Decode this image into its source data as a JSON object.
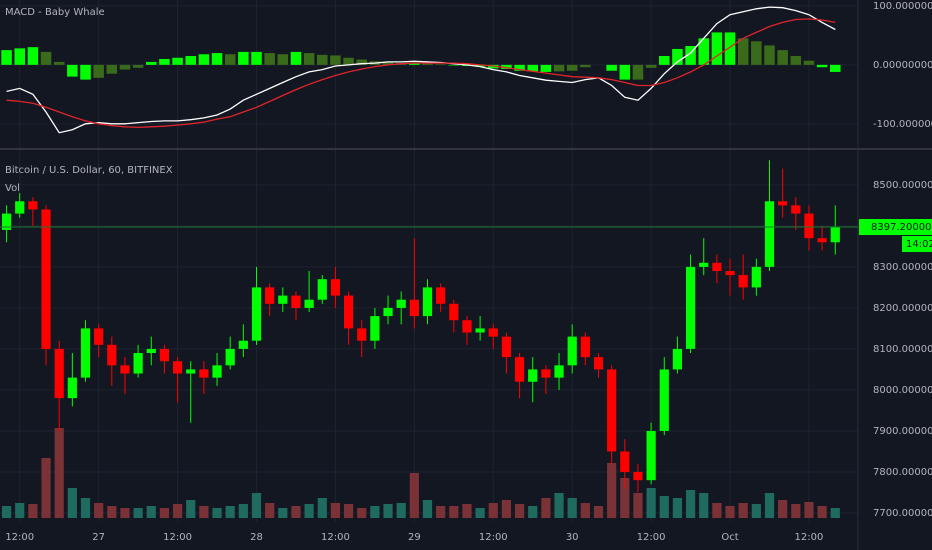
{
  "chart_data": [
    {
      "type": "macd",
      "title": "MACD - Baby Whale",
      "x": [
        1,
        3,
        5,
        7,
        9,
        11,
        13,
        15,
        17,
        19,
        21,
        23,
        25,
        27,
        29,
        31,
        33,
        35,
        37,
        39,
        41,
        43,
        45,
        47,
        49,
        51,
        53,
        55,
        57,
        59,
        61,
        63,
        65,
        67,
        69,
        71,
        73,
        75,
        77,
        79,
        81,
        83,
        85,
        87,
        89,
        91,
        93,
        95,
        97,
        99,
        101,
        103,
        105,
        107,
        109,
        111,
        113,
        115,
        117,
        119,
        121,
        123,
        125,
        127
      ],
      "xlim": [
        0,
        130
      ],
      "ylim": [
        -141,
        110
      ],
      "yticks": [
        {
          "value": 100,
          "label": "100.00000000"
        },
        {
          "value": 0,
          "label": "0.00000000"
        },
        {
          "value": -100,
          "label": "-100.00000000"
        }
      ],
      "histogram": {
        "colors": [
          "#00ff00",
          "#3a6b1a"
        ],
        "values": [
          25,
          28,
          30,
          22,
          5,
          -20,
          -25,
          -22,
          -15,
          -8,
          -5,
          5,
          10,
          12,
          15,
          18,
          20,
          18,
          22,
          22,
          20,
          18,
          22,
          20,
          17,
          16,
          12,
          9,
          6,
          5,
          3,
          3,
          2,
          1,
          -1,
          -2,
          -3,
          -6,
          -7,
          -10,
          -11,
          -12,
          -11,
          -10,
          -4,
          0,
          -10,
          -25,
          -25,
          -5,
          15,
          27,
          32,
          45,
          55,
          55,
          45,
          40,
          33,
          25,
          15,
          7,
          -4,
          -12
        ]
      },
      "lines": [
        {
          "color": "#ffffff",
          "values": [
            -45,
            -40,
            -50,
            -80,
            -115,
            -110,
            -100,
            -98,
            -100,
            -100,
            -98,
            -96,
            -95,
            -95,
            -93,
            -90,
            -85,
            -75,
            -60,
            -50,
            -40,
            -30,
            -20,
            -12,
            -8,
            -2,
            0,
            2,
            3,
            5,
            5,
            6,
            5,
            4,
            2,
            0,
            -3,
            -8,
            -12,
            -18,
            -22,
            -26,
            -28,
            -30,
            -25,
            -22,
            -35,
            -55,
            -60,
            -40,
            -15,
            5,
            20,
            45,
            70,
            85,
            90,
            95,
            98,
            97,
            92,
            85,
            72,
            60
          ]
        },
        {
          "color": "#e0242c",
          "values": [
            -60,
            -62,
            -65,
            -72,
            -80,
            -88,
            -95,
            -100,
            -103,
            -105,
            -106,
            -105,
            -104,
            -102,
            -100,
            -97,
            -92,
            -88,
            -80,
            -72,
            -62,
            -52,
            -42,
            -33,
            -25,
            -18,
            -12,
            -7,
            -3,
            0,
            2,
            3,
            3,
            3,
            3,
            2,
            0,
            -2,
            -5,
            -8,
            -11,
            -14,
            -17,
            -20,
            -21,
            -22,
            -25,
            -30,
            -35,
            -35,
            -30,
            -22,
            -12,
            0,
            15,
            30,
            45,
            55,
            65,
            72,
            77,
            78,
            76,
            72
          ]
        }
      ]
    },
    {
      "type": "candlestick",
      "title": "Bitcoin / U.S. Dollar, 60, BITFINEX",
      "volume_label": "Vol",
      "x": [
        1,
        3,
        5,
        7,
        9,
        11,
        13,
        15,
        17,
        19,
        21,
        23,
        25,
        27,
        29,
        31,
        33,
        35,
        37,
        39,
        41,
        43,
        45,
        47,
        49,
        51,
        53,
        55,
        57,
        59,
        61,
        63,
        65,
        67,
        69,
        71,
        73,
        75,
        77,
        79,
        81,
        83,
        85,
        87,
        89,
        91,
        93,
        95,
        97,
        99,
        101,
        103,
        105,
        107,
        109,
        111,
        113,
        115,
        117,
        119,
        121,
        123,
        125,
        127
      ],
      "open": [
        8390,
        8430,
        8460,
        8440,
        8100,
        7980,
        8030,
        8150,
        8110,
        8060,
        8040,
        8090,
        8100,
        8070,
        8040,
        8050,
        8030,
        8060,
        8100,
        8120,
        8250,
        8210,
        8230,
        8200,
        8220,
        8270,
        8230,
        8150,
        8120,
        8180,
        8200,
        8220,
        8180,
        8250,
        8210,
        8170,
        8140,
        8150,
        8130,
        8080,
        8020,
        8050,
        8030,
        8060,
        8130,
        8080,
        8050,
        7850,
        7800,
        7780,
        7900,
        8050,
        8100,
        8300,
        8310,
        8290,
        8280,
        8250,
        8300,
        8460,
        8450,
        8430,
        8370,
        8360
      ],
      "high": [
        8450,
        8480,
        8470,
        8450,
        8120,
        8090,
        8170,
        8160,
        8130,
        8080,
        8110,
        8130,
        8110,
        8080,
        8070,
        8070,
        8090,
        8130,
        8160,
        8300,
        8260,
        8250,
        8240,
        8290,
        8280,
        8300,
        8240,
        8170,
        8200,
        8230,
        8240,
        8370,
        8270,
        8260,
        8220,
        8180,
        8180,
        8160,
        8140,
        8090,
        8080,
        8060,
        8090,
        8160,
        8140,
        8090,
        8060,
        7880,
        7820,
        7920,
        8080,
        8130,
        8330,
        8370,
        8330,
        8320,
        8330,
        8320,
        8560,
        8540,
        8470,
        8450,
        8400,
        8450
      ],
      "low": [
        8360,
        8420,
        8400,
        8060,
        7900,
        7960,
        8020,
        8080,
        8010,
        7990,
        8030,
        8060,
        8040,
        7970,
        7920,
        7990,
        8010,
        8050,
        8080,
        8110,
        8180,
        8190,
        8170,
        8190,
        8210,
        8200,
        8110,
        8080,
        8100,
        8160,
        8160,
        8150,
        8160,
        8190,
        8140,
        8110,
        8120,
        8100,
        8040,
        7980,
        7970,
        7990,
        8000,
        8040,
        8060,
        8030,
        7820,
        7760,
        7750,
        7770,
        7890,
        8040,
        8090,
        8280,
        8260,
        8230,
        8220,
        8230,
        8290,
        8420,
        8390,
        8340,
        8340,
        8330
      ],
      "close": [
        8430,
        8460,
        8440,
        8100,
        7980,
        8030,
        8150,
        8110,
        8060,
        8040,
        8090,
        8100,
        8070,
        8040,
        8050,
        8030,
        8060,
        8100,
        8120,
        8250,
        8210,
        8230,
        8200,
        8220,
        8270,
        8230,
        8150,
        8120,
        8180,
        8200,
        8220,
        8180,
        8250,
        8210,
        8170,
        8140,
        8150,
        8130,
        8080,
        8020,
        8050,
        8030,
        8060,
        8130,
        8080,
        8050,
        7850,
        7800,
        7780,
        7900,
        8050,
        8100,
        8300,
        8310,
        8290,
        8280,
        8250,
        8300,
        8460,
        8450,
        8430,
        8370,
        8360,
        8397.2
      ],
      "volume": [
        12,
        15,
        14,
        60,
        90,
        30,
        20,
        15,
        12,
        10,
        10,
        12,
        10,
        14,
        18,
        12,
        10,
        12,
        14,
        25,
        15,
        10,
        12,
        14,
        20,
        15,
        14,
        10,
        12,
        14,
        15,
        45,
        18,
        12,
        12,
        14,
        10,
        15,
        18,
        14,
        12,
        20,
        25,
        20,
        15,
        12,
        55,
        40,
        25,
        30,
        22,
        20,
        28,
        25,
        15,
        12,
        15,
        14,
        25,
        18,
        14,
        16,
        12,
        10
      ],
      "vlim": [
        0,
        100
      ],
      "up_color": "#00ff00",
      "down_color": "#ff0000",
      "volume_colors": [
        "#1f6b60",
        "#7a3236"
      ],
      "xlim": [
        0,
        130
      ],
      "ylim": [
        7678,
        8585
      ],
      "yticks": [
        {
          "value": 8500,
          "label": "8500.00000000"
        },
        {
          "value": 8400,
          "label": "8400.00000000"
        },
        {
          "value": 8300,
          "label": "8300.00000000"
        },
        {
          "value": 8200,
          "label": "8200.00000000"
        },
        {
          "value": 8100,
          "label": "8100.00000000"
        },
        {
          "value": 8000,
          "label": "8000.00000000"
        },
        {
          "value": 7900,
          "label": "7900.00000000"
        },
        {
          "value": 7800,
          "label": "7800.00000000"
        },
        {
          "value": 7700,
          "label": "7700.00000000"
        }
      ],
      "xticks": [
        {
          "value": 3,
          "label": "12:00"
        },
        {
          "value": 15,
          "label": "27"
        },
        {
          "value": 27,
          "label": "12:00"
        },
        {
          "value": 39,
          "label": "28"
        },
        {
          "value": 51,
          "label": "12:00"
        },
        {
          "value": 63,
          "label": "29"
        },
        {
          "value": 75,
          "label": "12:00"
        },
        {
          "value": 87,
          "label": "30"
        },
        {
          "value": 99,
          "label": "12:00"
        },
        {
          "value": 111,
          "label": "Oct"
        },
        {
          "value": 123,
          "label": "12:00"
        }
      ],
      "last_price": {
        "value": 8397.2,
        "label": "8397.20000000",
        "countdown": "14:02",
        "color": "#00ff00"
      },
      "grid": true
    }
  ]
}
